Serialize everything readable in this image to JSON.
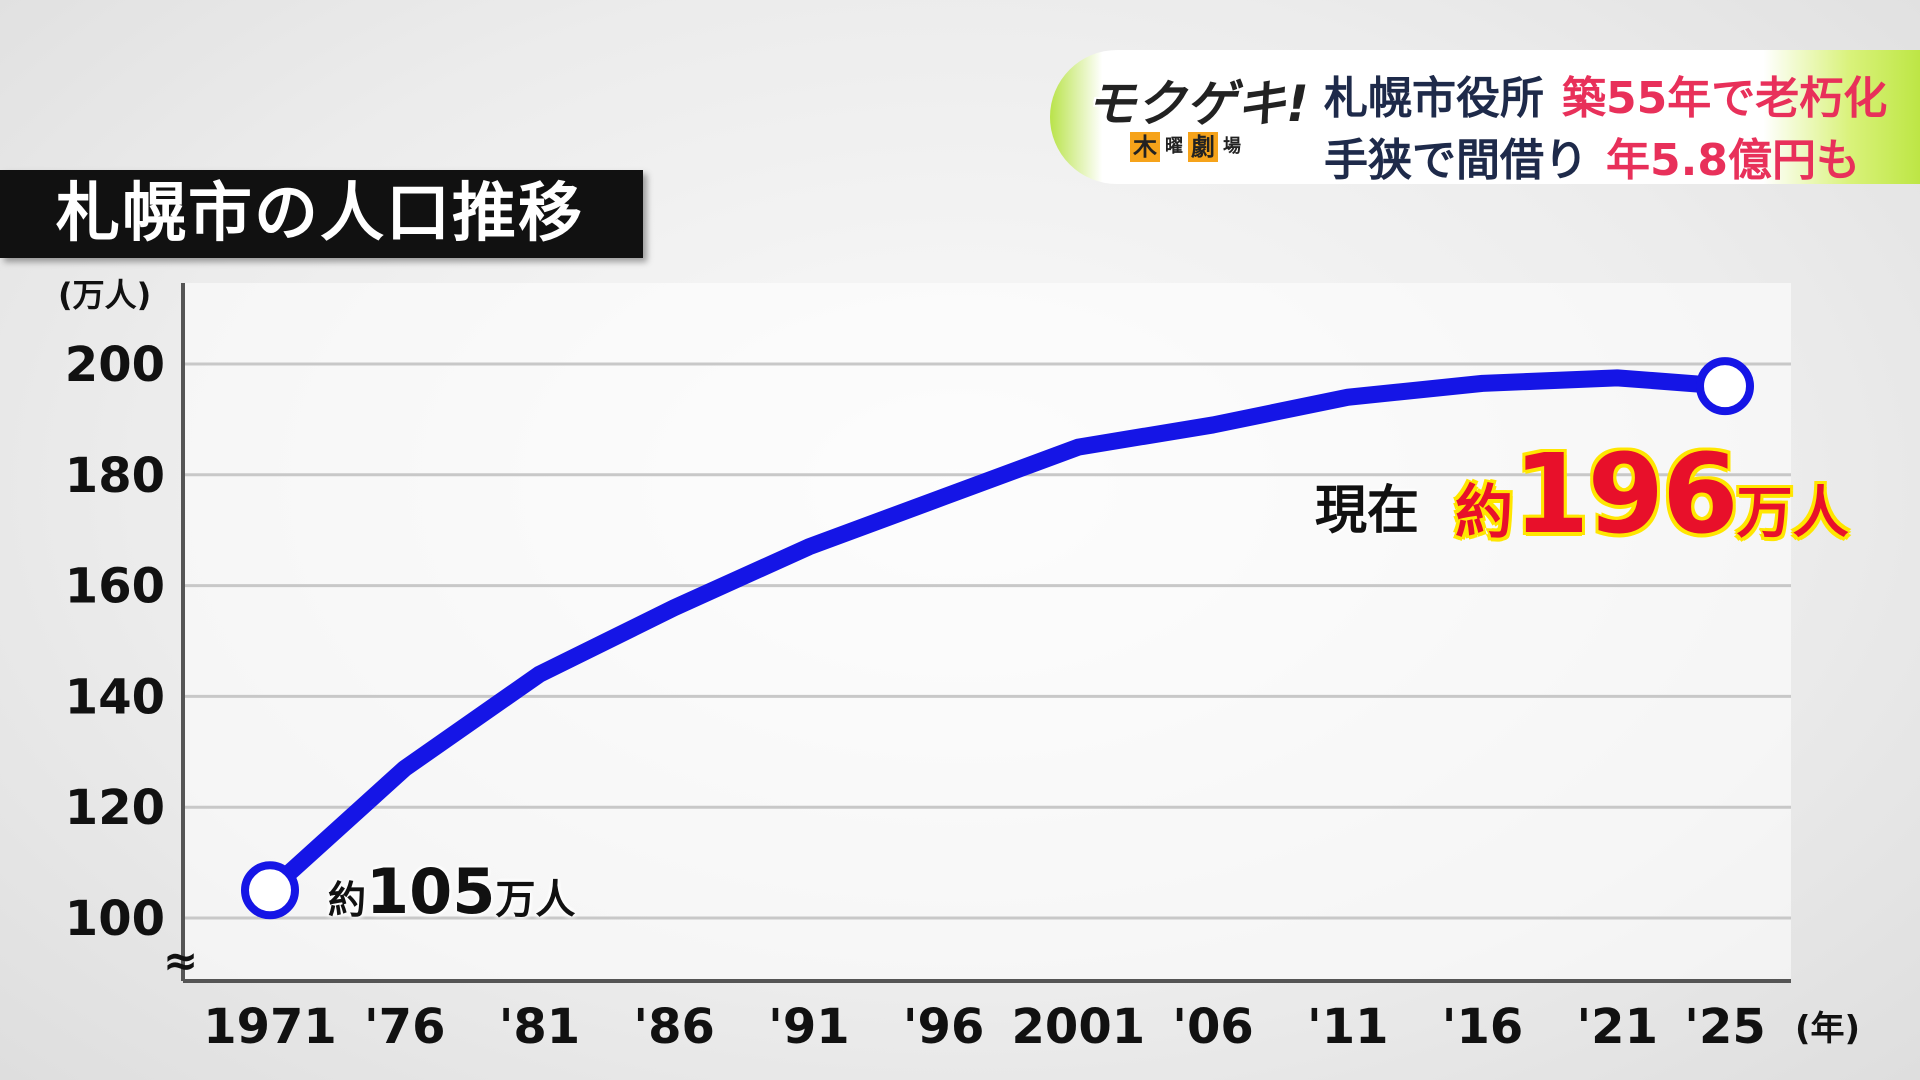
{
  "title": "札幌市の人口推移",
  "banner": {
    "logo_main": "モクゲキ!",
    "logo_sub": [
      "木",
      "曜",
      "劇",
      "場"
    ],
    "line1_dark": "札幌市役所",
    "line1_red": "築55年で老朽化",
    "line2_dark": "手狭で間借り",
    "line2_red": "年5.8億円も"
  },
  "colors": {
    "line": "#1515e6",
    "title_bg": "#111111",
    "highlight_red": "#e8102a",
    "highlight_yellow": "#ffe600",
    "banner_red": "#e8305a",
    "banner_green": "#b9e34a"
  },
  "chart_data": {
    "type": "line",
    "title": "札幌市の人口推移",
    "ylabel": "(万人)",
    "xlabel": "(年)",
    "ylim": [
      100,
      200
    ],
    "yticks": [
      "100",
      "120",
      "140",
      "160",
      "180",
      "200"
    ],
    "axis_break_symbol": "≈",
    "grid": true,
    "categories": [
      "1971",
      "'76",
      "'81",
      "'86",
      "'91",
      "'96",
      "2001",
      "'06",
      "'11",
      "'16",
      "'21",
      "'25"
    ],
    "series": [
      {
        "x": [
          1971,
          1976,
          1981,
          1986,
          1991,
          1996,
          2001,
          2006,
          2011,
          2016,
          2021,
          2025
        ],
        "values": [
          105,
          127,
          144,
          156,
          167,
          176,
          185,
          189,
          194,
          196.5,
          197.5,
          196
        ]
      }
    ],
    "annotations": {
      "start_prefix": "約",
      "start_value": "105",
      "start_unit": "万人",
      "current_label": "現在",
      "current_prefix": "約",
      "current_value": "196",
      "current_unit": "万人"
    }
  }
}
